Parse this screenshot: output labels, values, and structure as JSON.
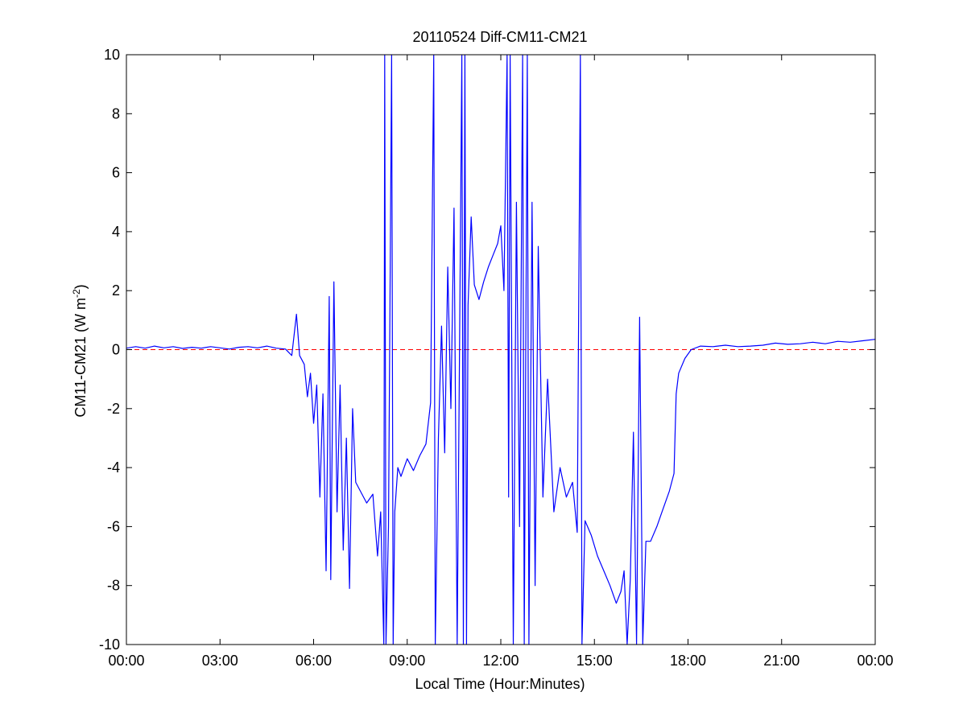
{
  "chart_data": {
    "type": "line",
    "title": "20110524 Diff-CM11-CM21",
    "xlabel": "Local Time (Hour:Minutes)",
    "ylabel": "CM11-CM21 (W m",
    "ylabel_superscript": "-2",
    "ylabel_close": ")",
    "xlim": [
      0,
      24
    ],
    "ylim": [
      -10,
      10
    ],
    "x_ticks": [
      0,
      3,
      6,
      9,
      12,
      15,
      18,
      21,
      24
    ],
    "x_tick_labels": [
      "00:00",
      "03:00",
      "06:00",
      "09:00",
      "12:00",
      "15:00",
      "18:00",
      "21:00",
      "00:00"
    ],
    "y_ticks": [
      -10,
      -8,
      -6,
      -4,
      -2,
      0,
      2,
      4,
      6,
      8,
      10
    ],
    "y_tick_labels": [
      "-10",
      "-8",
      "-6",
      "-4",
      "-2",
      "0",
      "2",
      "4",
      "6",
      "8",
      "10"
    ],
    "grid": false,
    "reference_line": {
      "y": 0,
      "style": "dashed",
      "color": "#ff0000"
    },
    "series": [
      {
        "color": "#0000ff",
        "x_unit": "hours",
        "points": [
          [
            0.0,
            0.05
          ],
          [
            0.3,
            0.1
          ],
          [
            0.6,
            0.05
          ],
          [
            0.9,
            0.12
          ],
          [
            1.2,
            0.06
          ],
          [
            1.5,
            0.1
          ],
          [
            1.8,
            0.04
          ],
          [
            2.1,
            0.08
          ],
          [
            2.4,
            0.05
          ],
          [
            2.7,
            0.1
          ],
          [
            3.0,
            0.06
          ],
          [
            3.3,
            0.02
          ],
          [
            3.6,
            0.08
          ],
          [
            3.9,
            0.1
          ],
          [
            4.2,
            0.06
          ],
          [
            4.5,
            0.12
          ],
          [
            4.8,
            0.05
          ],
          [
            5.1,
            0.02
          ],
          [
            5.3,
            -0.2
          ],
          [
            5.45,
            1.2
          ],
          [
            5.55,
            -0.2
          ],
          [
            5.7,
            -0.5
          ],
          [
            5.8,
            -1.6
          ],
          [
            5.9,
            -0.8
          ],
          [
            6.0,
            -2.5
          ],
          [
            6.1,
            -1.2
          ],
          [
            6.2,
            -5.0
          ],
          [
            6.3,
            -1.5
          ],
          [
            6.4,
            -7.5
          ],
          [
            6.5,
            1.8
          ],
          [
            6.55,
            -7.8
          ],
          [
            6.65,
            2.3
          ],
          [
            6.75,
            -5.5
          ],
          [
            6.85,
            -1.2
          ],
          [
            6.95,
            -6.8
          ],
          [
            7.05,
            -3.0
          ],
          [
            7.15,
            -8.1
          ],
          [
            7.25,
            -2.0
          ],
          [
            7.35,
            -4.5
          ],
          [
            7.5,
            -4.8
          ],
          [
            7.7,
            -5.2
          ],
          [
            7.9,
            -4.9
          ],
          [
            8.05,
            -7.0
          ],
          [
            8.15,
            -5.5
          ],
          [
            8.25,
            -10.0
          ],
          [
            8.28,
            10.0
          ],
          [
            8.32,
            -10.0
          ],
          [
            8.4,
            -6.0
          ],
          [
            8.5,
            10.0
          ],
          [
            8.55,
            -10.0
          ],
          [
            8.6,
            -5.5
          ],
          [
            8.7,
            -4.0
          ],
          [
            8.8,
            -4.3
          ],
          [
            9.0,
            -3.7
          ],
          [
            9.2,
            -4.1
          ],
          [
            9.4,
            -3.6
          ],
          [
            9.6,
            -3.2
          ],
          [
            9.75,
            -1.8
          ],
          [
            9.85,
            10.0
          ],
          [
            9.9,
            -10.0
          ],
          [
            10.0,
            -3.0
          ],
          [
            10.1,
            0.8
          ],
          [
            10.2,
            -3.5
          ],
          [
            10.3,
            2.8
          ],
          [
            10.4,
            -2.0
          ],
          [
            10.5,
            4.8
          ],
          [
            10.6,
            -10.0
          ],
          [
            10.7,
            3.0
          ],
          [
            10.75,
            10.0
          ],
          [
            10.8,
            -10.0
          ],
          [
            10.85,
            10.0
          ],
          [
            10.9,
            -10.0
          ],
          [
            10.95,
            1.5
          ],
          [
            11.05,
            4.5
          ],
          [
            11.15,
            2.2
          ],
          [
            11.3,
            1.7
          ],
          [
            11.45,
            2.3
          ],
          [
            11.6,
            2.8
          ],
          [
            11.75,
            3.2
          ],
          [
            11.9,
            3.6
          ],
          [
            12.0,
            4.2
          ],
          [
            12.1,
            2.0
          ],
          [
            12.2,
            10.0
          ],
          [
            12.25,
            -5.0
          ],
          [
            12.3,
            10.0
          ],
          [
            12.4,
            -10.0
          ],
          [
            12.5,
            5.0
          ],
          [
            12.6,
            -6.0
          ],
          [
            12.7,
            10.0
          ],
          [
            12.75,
            -10.0
          ],
          [
            12.85,
            10.0
          ],
          [
            12.9,
            -10.0
          ],
          [
            13.0,
            5.0
          ],
          [
            13.1,
            -8.0
          ],
          [
            13.2,
            3.5
          ],
          [
            13.35,
            -5.0
          ],
          [
            13.5,
            -1.0
          ],
          [
            13.7,
            -5.5
          ],
          [
            13.9,
            -4.0
          ],
          [
            14.1,
            -5.0
          ],
          [
            14.3,
            -4.5
          ],
          [
            14.45,
            -6.2
          ],
          [
            14.55,
            10.0
          ],
          [
            14.6,
            -10.0
          ],
          [
            14.7,
            -5.8
          ],
          [
            14.9,
            -6.3
          ],
          [
            15.1,
            -7.0
          ],
          [
            15.3,
            -7.5
          ],
          [
            15.5,
            -8.0
          ],
          [
            15.7,
            -8.6
          ],
          [
            15.85,
            -8.2
          ],
          [
            15.95,
            -7.5
          ],
          [
            16.05,
            -10.0
          ],
          [
            16.15,
            -7.8
          ],
          [
            16.25,
            -2.8
          ],
          [
            16.35,
            -10.0
          ],
          [
            16.45,
            1.1
          ],
          [
            16.55,
            -10.0
          ],
          [
            16.65,
            -6.5
          ],
          [
            16.8,
            -6.5
          ],
          [
            17.0,
            -6.0
          ],
          [
            17.2,
            -5.4
          ],
          [
            17.4,
            -4.8
          ],
          [
            17.55,
            -4.2
          ],
          [
            17.62,
            -1.5
          ],
          [
            17.7,
            -0.8
          ],
          [
            17.9,
            -0.3
          ],
          [
            18.1,
            0.0
          ],
          [
            18.4,
            0.12
          ],
          [
            18.8,
            0.1
          ],
          [
            19.2,
            0.15
          ],
          [
            19.6,
            0.1
          ],
          [
            20.0,
            0.12
          ],
          [
            20.4,
            0.15
          ],
          [
            20.8,
            0.22
          ],
          [
            21.2,
            0.18
          ],
          [
            21.6,
            0.2
          ],
          [
            22.0,
            0.25
          ],
          [
            22.4,
            0.2
          ],
          [
            22.8,
            0.28
          ],
          [
            23.2,
            0.25
          ],
          [
            23.6,
            0.3
          ],
          [
            24.0,
            0.35
          ]
        ]
      }
    ]
  }
}
